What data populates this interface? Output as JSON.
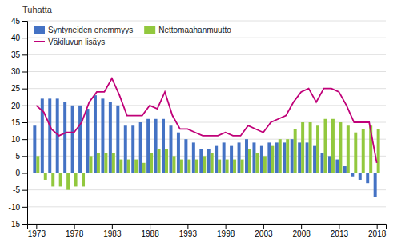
{
  "chart_data": {
    "type": "bar",
    "y_label": "Tuhatta",
    "x": [
      1973,
      1974,
      1975,
      1976,
      1977,
      1978,
      1979,
      1980,
      1981,
      1982,
      1983,
      1984,
      1985,
      1986,
      1987,
      1988,
      1989,
      1990,
      1991,
      1992,
      1993,
      1994,
      1995,
      1996,
      1997,
      1998,
      1999,
      2000,
      2001,
      2002,
      2003,
      2004,
      2005,
      2006,
      2007,
      2008,
      2009,
      2010,
      2011,
      2012,
      2013,
      2014,
      2015,
      2016,
      2017,
      2018
    ],
    "series": [
      {
        "name": "Syntyneiden enemmyys",
        "type": "bar",
        "color": "#4472c4",
        "values": [
          14,
          22,
          22,
          22,
          21,
          20,
          20,
          19,
          23,
          22,
          21,
          20,
          14,
          14,
          15,
          16,
          16,
          16,
          14,
          12,
          10,
          9,
          7,
          7,
          8,
          9,
          8,
          9,
          10,
          9,
          8,
          9,
          9,
          9,
          10,
          9,
          9,
          8,
          6,
          5,
          4,
          2,
          -1,
          -2,
          -3,
          -7
        ]
      },
      {
        "name": "Nettomaahanmuutto",
        "type": "bar",
        "color": "#92c83e",
        "values": [
          5,
          -2,
          -4,
          -4,
          -5,
          -4,
          -4,
          5,
          6,
          6,
          6,
          4,
          4,
          4,
          3,
          6,
          7,
          7,
          5,
          4,
          4,
          4,
          5,
          6,
          4,
          4,
          4,
          4,
          7,
          6,
          5,
          8,
          10,
          10,
          13,
          15,
          15,
          14,
          16,
          16,
          15,
          14,
          12,
          13,
          14,
          13
        ]
      },
      {
        "name": "Väkiluvun lisäys",
        "type": "line",
        "color": "#c00078",
        "values": [
          20,
          18,
          13,
          11,
          12,
          12,
          15,
          21,
          24,
          24,
          28,
          23,
          17,
          17,
          17,
          20,
          19,
          24,
          17,
          13,
          13,
          12,
          11,
          11,
          11,
          12,
          11,
          11,
          14,
          13,
          12,
          15,
          16,
          17,
          21,
          24,
          25,
          21,
          25,
          25,
          24,
          20,
          15,
          15,
          15,
          3
        ]
      }
    ],
    "xlim": [
      1971.8,
      2019.2
    ],
    "xticks": [
      1973,
      1978,
      1983,
      1988,
      1993,
      1998,
      2003,
      2008,
      2013,
      2018
    ],
    "ylim": [
      -15,
      45
    ],
    "yticks": [
      -15,
      -10,
      -5,
      0,
      5,
      10,
      15,
      20,
      25,
      30,
      35,
      40,
      45
    ],
    "grid": true,
    "legend": "upper left"
  }
}
